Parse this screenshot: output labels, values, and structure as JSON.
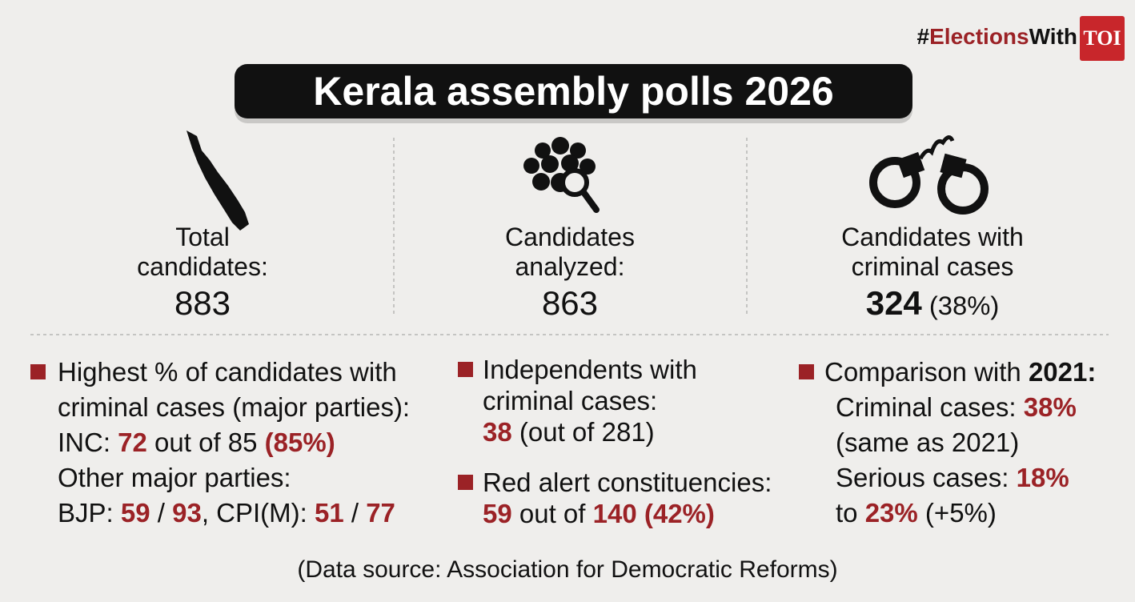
{
  "brand": {
    "hashtag": [
      {
        "text": "#"
      },
      {
        "text": "Elections",
        "style": "red"
      },
      {
        "text": "With"
      }
    ],
    "logo": "TOI"
  },
  "title": "Kerala assembly polls 2026",
  "stats": [
    {
      "label": [
        "Total",
        "candidates:"
      ],
      "value": [
        {
          "text": "883"
        }
      ]
    },
    {
      "label": [
        "Candidates",
        "analyzed:"
      ],
      "value": [
        {
          "text": "863"
        }
      ]
    },
    {
      "label": [
        "Candidates with",
        "criminal cases"
      ],
      "value": [
        {
          "text": "324",
          "style": "bold"
        },
        {
          "text": " (38%)",
          "style": "small"
        }
      ]
    }
  ],
  "findings": [
    {
      "lines": [
        [
          {
            "text": "Highest % of candidates with"
          }
        ],
        [
          {
            "text": "criminal cases (major parties):"
          }
        ],
        [
          {
            "text": "INC: "
          },
          {
            "text": "72",
            "style": "red"
          },
          {
            "text": " out of 85 "
          },
          {
            "text": "(85%)",
            "style": "red"
          }
        ],
        [
          {
            "text": "Other major parties:"
          }
        ],
        [
          {
            "text": "BJP: "
          },
          {
            "text": "59",
            "style": "red"
          },
          {
            "text": " / "
          },
          {
            "text": "93",
            "style": "red"
          },
          {
            "text": ", CPI(M): "
          },
          {
            "text": "51",
            "style": "red"
          },
          {
            "text": " / "
          },
          {
            "text": "77",
            "style": "red"
          }
        ]
      ]
    },
    {
      "lines": [
        [
          {
            "text": "Independents with"
          }
        ],
        [
          {
            "text": "criminal cases:"
          }
        ],
        [
          {
            "text": "38",
            "style": "red"
          },
          {
            "text": " (out of 281)"
          }
        ]
      ]
    },
    {
      "lines": [
        [
          {
            "text": "Red alert constituencies:"
          }
        ],
        [
          {
            "text": "59",
            "style": "red"
          },
          {
            "text": " out of "
          },
          {
            "text": "140 (42%)",
            "style": "red"
          }
        ]
      ]
    },
    {
      "lines": [
        [
          {
            "text": "Comparison with "
          },
          {
            "text": "2021:",
            "style": "bold"
          }
        ],
        [
          {
            "text": "Criminal cases: "
          },
          {
            "text": "38%",
            "style": "red"
          }
        ],
        [
          {
            "text": "(same as 2021)"
          }
        ],
        [
          {
            "text": "Serious cases: "
          },
          {
            "text": "18%",
            "style": "red"
          }
        ],
        [
          {
            "text": "to "
          },
          {
            "text": "23%",
            "style": "red"
          },
          {
            "text": " (+5%)"
          }
        ]
      ]
    }
  ],
  "source": "(Data source: Association for Democratic Reforms)"
}
